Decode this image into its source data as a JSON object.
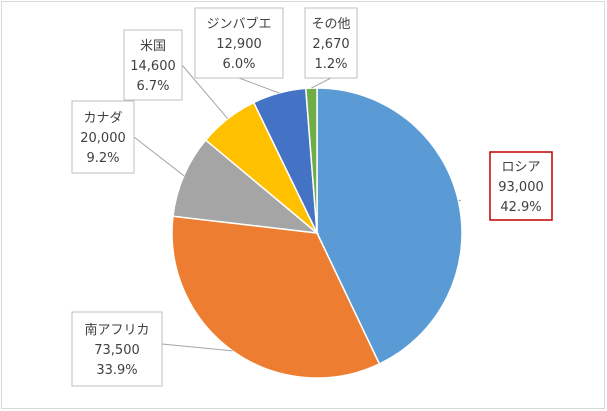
{
  "chart_data": {
    "type": "pie",
    "title": "",
    "slices": [
      {
        "label": "ロシア",
        "value_text": "93,000",
        "pct_text": "42.9%",
        "value": 93000,
        "pct": 42.9,
        "color": "#5b9bd5"
      },
      {
        "label": "南アフリカ",
        "value_text": "73,500",
        "pct_text": "33.9%",
        "value": 73500,
        "pct": 33.9,
        "color": "#ed7d31"
      },
      {
        "label": "カナダ",
        "value_text": "20,000",
        "pct_text": "9.2%",
        "value": 20000,
        "pct": 9.2,
        "color": "#a5a5a5"
      },
      {
        "label": "米国",
        "value_text": "14,600",
        "pct_text": "6.7%",
        "value": 14600,
        "pct": 6.7,
        "color": "#ffc000"
      },
      {
        "label": "ジンバブエ",
        "value_text": "12,900",
        "pct_text": "6.0%",
        "value": 12900,
        "pct": 6.0,
        "color": "#4472c4"
      },
      {
        "label": "その他",
        "value_text": "2,670",
        "pct_text": "1.2%",
        "value": 2670,
        "pct": 1.2,
        "color": "#70ad47"
      }
    ],
    "highlight_label": "ロシア",
    "highlight_color": "#c00000",
    "legend": "none"
  }
}
